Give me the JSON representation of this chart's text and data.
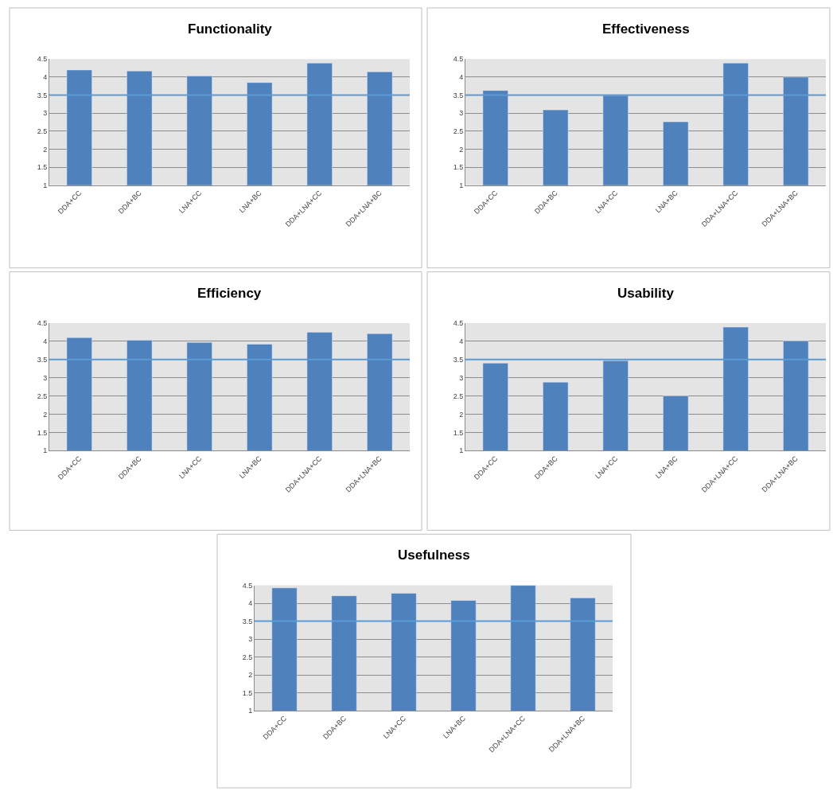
{
  "chart_data": [
    {
      "type": "bar",
      "title": "Functionality",
      "categories": [
        "DDA+CC",
        "DDA+BC",
        "LNA+CC",
        "LNA+BC",
        "DDA+LNA+CC",
        "DDA+LNA+BC"
      ],
      "values": [
        4.2,
        4.17,
        4.03,
        3.85,
        4.39,
        4.15
      ],
      "color": "#4f81bd",
      "ylim": [
        1,
        4.5
      ],
      "yticks": [
        1,
        1.5,
        2,
        2.5,
        3,
        3.5,
        4,
        4.5
      ],
      "grid": "y",
      "ref_lines": [
        {
          "axis": "y",
          "value": 3.5,
          "color": "#5b9bd5"
        }
      ]
    },
    {
      "type": "bar",
      "title": "Effectiveness",
      "categories": [
        "DDA+CC",
        "DDA+BC",
        "LNA+CC",
        "LNA+BC",
        "DDA+LNA+CC",
        "DDA+LNA+BC"
      ],
      "values": [
        3.63,
        3.09,
        3.49,
        2.76,
        4.39,
        4.0
      ],
      "color": "#4f81bd",
      "ylim": [
        1,
        4.5
      ],
      "yticks": [
        1,
        1.5,
        2,
        2.5,
        3,
        3.5,
        4,
        4.5
      ],
      "grid": "y",
      "ref_lines": [
        {
          "axis": "y",
          "value": 3.5,
          "color": "#5b9bd5"
        }
      ]
    },
    {
      "type": "bar",
      "title": "Efficiency",
      "categories": [
        "DDA+CC",
        "DDA+BC",
        "LNA+CC",
        "LNA+BC",
        "DDA+LNA+CC",
        "DDA+LNA+BC"
      ],
      "values": [
        4.1,
        4.03,
        3.97,
        3.92,
        4.25,
        4.21
      ],
      "color": "#4f81bd",
      "ylim": [
        1,
        4.5
      ],
      "yticks": [
        1,
        1.5,
        2,
        2.5,
        3,
        3.5,
        4,
        4.5
      ],
      "grid": "y",
      "ref_lines": [
        {
          "axis": "y",
          "value": 3.5,
          "color": "#5b9bd5"
        }
      ]
    },
    {
      "type": "bar",
      "title": "Usability",
      "categories": [
        "DDA+CC",
        "DDA+BC",
        "LNA+CC",
        "LNA+BC",
        "DDA+LNA+CC",
        "DDA+LNA+BC"
      ],
      "values": [
        3.4,
        2.88,
        3.47,
        2.5,
        4.39,
        4.01
      ],
      "color": "#4f81bd",
      "ylim": [
        1,
        4.5
      ],
      "yticks": [
        1,
        1.5,
        2,
        2.5,
        3,
        3.5,
        4,
        4.5
      ],
      "grid": "y",
      "ref_lines": [
        {
          "axis": "y",
          "value": 3.5,
          "color": "#5b9bd5"
        }
      ]
    },
    {
      "type": "bar",
      "title": "Usefulness",
      "categories": [
        "DDA+CC",
        "DDA+BC",
        "LNA+CC",
        "LNA+BC",
        "DDA+LNA+CC",
        "DDA+LNA+BC"
      ],
      "values": [
        4.43,
        4.21,
        4.28,
        4.08,
        4.5,
        4.15
      ],
      "color": "#4f81bd",
      "ylim": [
        1,
        4.5
      ],
      "yticks": [
        1,
        1.5,
        2,
        2.5,
        3,
        3.5,
        4,
        4.5
      ],
      "grid": "y",
      "ref_lines": [
        {
          "axis": "y",
          "value": 3.5,
          "color": "#5b9bd5"
        }
      ]
    }
  ]
}
